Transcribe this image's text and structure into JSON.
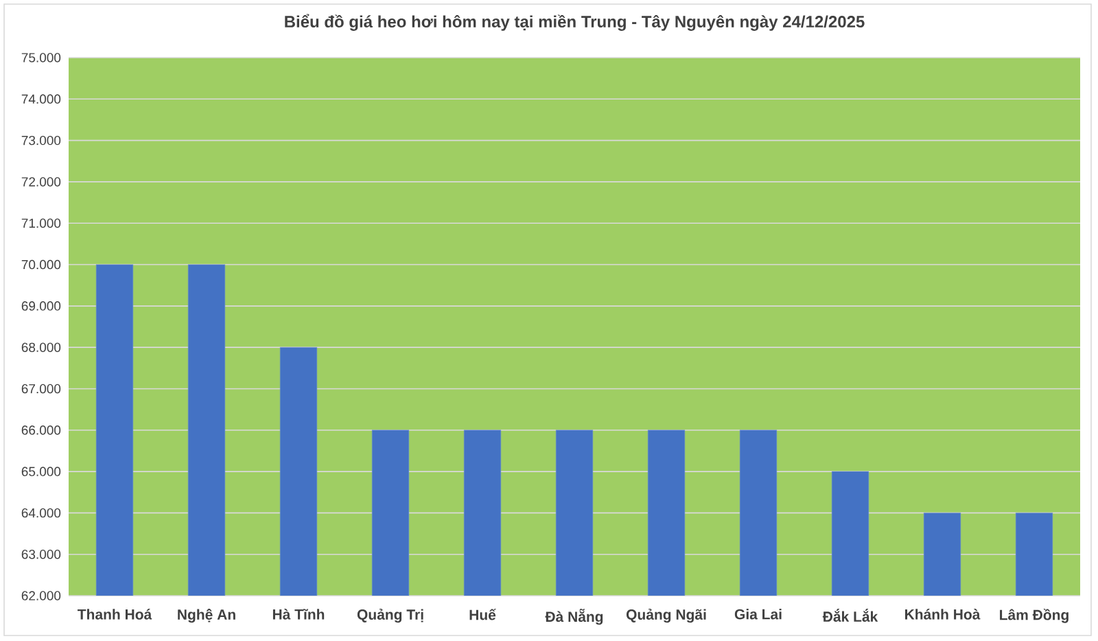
{
  "chart_data": {
    "type": "bar",
    "title": "Biểu đồ giá heo hơi hôm nay tại miền Trung - Tây Nguyên ngày 24/12/2025",
    "categories": [
      "Thanh Hoá",
      "Nghệ An",
      "Hà Tĩnh",
      "Quảng Trị",
      "Huế",
      "Đà Nẵng",
      "Quảng Ngãi",
      "Gia Lai",
      "Đắk Lắk",
      "Khánh Hoà",
      "Lâm Đồng"
    ],
    "values": [
      70000,
      70000,
      68000,
      66000,
      66000,
      66000,
      66000,
      66000,
      65000,
      64000,
      64000
    ],
    "color": "#4472c4",
    "ylim": [
      62000,
      75000
    ],
    "yticks": [
      {
        "value": 62000,
        "label": "62.000"
      },
      {
        "value": 63000,
        "label": "63.000"
      },
      {
        "value": 64000,
        "label": "64.000"
      },
      {
        "value": 65000,
        "label": "65.000"
      },
      {
        "value": 66000,
        "label": "66.000"
      },
      {
        "value": 67000,
        "label": "67.000"
      },
      {
        "value": 68000,
        "label": "68.000"
      },
      {
        "value": 69000,
        "label": "69.000"
      },
      {
        "value": 70000,
        "label": "70.000"
      },
      {
        "value": 71000,
        "label": "71.000"
      },
      {
        "value": 72000,
        "label": "72.000"
      },
      {
        "value": 73000,
        "label": "73.000"
      },
      {
        "value": 74000,
        "label": "74.000"
      },
      {
        "value": 75000,
        "label": "75.000"
      }
    ],
    "grid": "y"
  }
}
